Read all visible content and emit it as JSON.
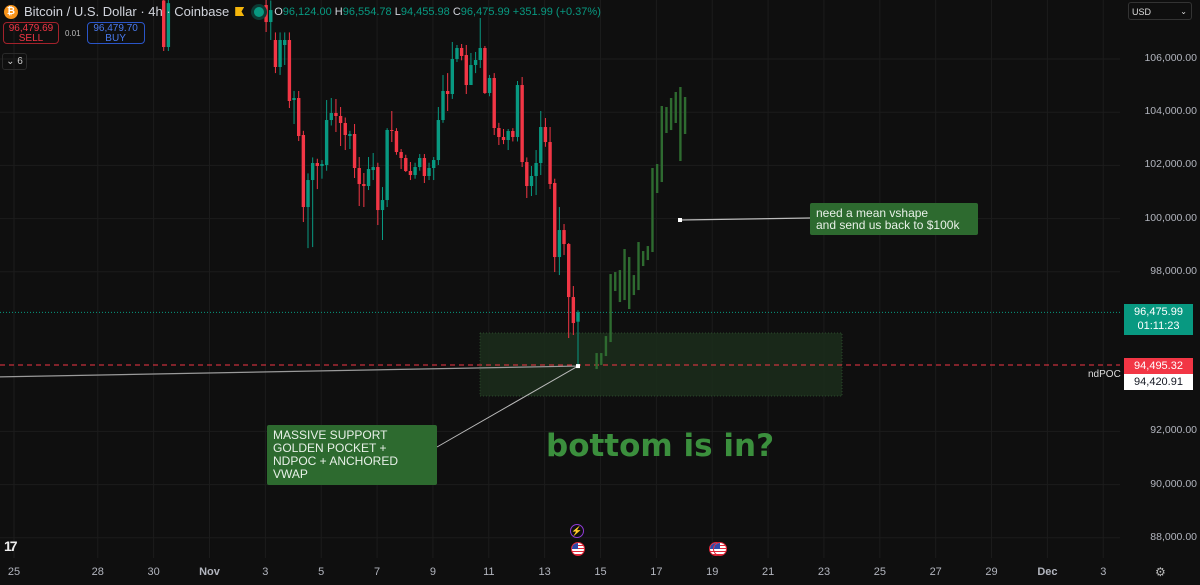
{
  "header": {
    "symbol_icon": "bitcoin-icon",
    "title": "Bitcoin / U.S. Dollar · 4h · Coinbase",
    "ohlc": {
      "o_label": "O",
      "o": "96,124.00",
      "h_label": "H",
      "h": "96,554.78",
      "l_label": "L",
      "l": "94,455.98",
      "c_label": "C",
      "c": "96,475.99",
      "change": "+351.99 (+0.37%)"
    }
  },
  "trade": {
    "sell_price": "96,479.69",
    "sell_label": "SELL",
    "spread": "0.01",
    "buy_price": "96,479.70",
    "buy_label": "BUY"
  },
  "indicators_toggle": "6",
  "currency": "USD",
  "price_axis": {
    "ticks": [
      "106,000.00",
      "104,000.00",
      "102,000.00",
      "100,000.00",
      "98,000.00",
      "92,000.00",
      "90,000.00",
      "88,000.00"
    ],
    "current_price": "96,475.99",
    "countdown": "01:11:23",
    "ndpoc_label": "ndPOC",
    "ndpoc_price": "94,495.32",
    "ndpoc_second": "94,420.91"
  },
  "time_axis": {
    "ticks": [
      "25",
      "28",
      "30",
      "Nov",
      "3",
      "5",
      "7",
      "9",
      "11",
      "13",
      "15",
      "17",
      "19",
      "21",
      "23",
      "25",
      "27",
      "29",
      "Dec",
      "3"
    ]
  },
  "annotations": {
    "support_note": [
      "MASSIVE SUPPORT",
      "GOLDEN POCKET +",
      "NDPOC + ANCHORED VWAP"
    ],
    "vshape_note": [
      "need a mean vshape",
      "and send us back to $100k"
    ],
    "headline": "bottom is in?"
  },
  "colors": {
    "up": "#089981",
    "down": "#f23645",
    "projection": "#2e6b30",
    "zone": "#1b2e1b",
    "ndpoc_line": "#f23645",
    "background": "#0f0f0f"
  },
  "chart_data": {
    "type": "candlestick",
    "symbol": "Bitcoin / U.S. Dollar",
    "interval": "4h",
    "ylim": [
      87000,
      108000
    ],
    "grid": true,
    "candles_ohlc": [
      [
        108200,
        108600,
        106300,
        106450
      ],
      [
        106450,
        108600,
        106300,
        108100
      ],
      null,
      null,
      null,
      null,
      null,
      null,
      null,
      null,
      null,
      null,
      null,
      null,
      null,
      null,
      null,
      null,
      null,
      null,
      null,
      null,
      [
        108030,
        108400,
        107015,
        107390
      ],
      [
        107390,
        108200,
        106714,
        107840
      ],
      [
        106714,
        107000,
        105470,
        105699
      ],
      [
        105699,
        107000,
        105400,
        106714
      ],
      [
        106526,
        107000,
        105774,
        106714
      ],
      [
        106714,
        107000,
        104157,
        104421
      ],
      [
        104458,
        104800,
        103556,
        104534
      ],
      [
        104534,
        104797,
        102916,
        103105
      ],
      [
        103143,
        103300,
        99871,
        100435
      ],
      [
        100435,
        101700,
        98890,
        101450
      ],
      [
        101450,
        102300,
        98930,
        102090
      ],
      [
        102090,
        102250,
        101110,
        101977
      ],
      [
        101977,
        102200,
        101500,
        102052
      ],
      [
        102014,
        104458,
        101800,
        103706
      ],
      [
        103706,
        104534,
        103500,
        103970
      ],
      [
        103970,
        104496,
        103256,
        103857
      ],
      [
        103857,
        104195,
        102729,
        103594
      ],
      [
        103594,
        103800,
        102578,
        103143
      ],
      [
        103105,
        103300,
        102616,
        103181
      ],
      [
        103181,
        103556,
        101526,
        101902
      ],
      [
        101902,
        102315,
        100473,
        101300
      ],
      [
        101300,
        101714,
        100435,
        101225
      ],
      [
        101225,
        102315,
        101074,
        101864
      ],
      [
        101826,
        102466,
        101450,
        101939
      ],
      [
        101939,
        102100,
        99758,
        100322
      ],
      [
        100322,
        101187,
        99195,
        100698
      ],
      [
        100698,
        103400,
        100435,
        103331
      ],
      [
        103331,
        104045,
        102879,
        103293
      ],
      [
        103293,
        103400,
        102400,
        102503
      ],
      [
        102503,
        102616,
        101864,
        102278
      ],
      [
        102278,
        102400,
        101751,
        101789
      ],
      [
        101789,
        102127,
        101450,
        101638
      ],
      [
        101638,
        102100,
        101500,
        101939
      ],
      [
        101939,
        102428,
        101800,
        102278
      ],
      [
        102278,
        102428,
        101338,
        101601
      ],
      [
        101601,
        102100,
        101450,
        101902
      ],
      [
        101902,
        102315,
        101450,
        102202
      ],
      [
        102202,
        104195,
        102014,
        103706
      ],
      [
        103706,
        105398,
        103600,
        104797
      ],
      [
        104797,
        105470,
        104045,
        104684
      ],
      [
        104684,
        106640,
        104500,
        106000
      ],
      [
        106000,
        106526,
        105887,
        106414
      ],
      [
        106414,
        106564,
        105950,
        106113
      ],
      [
        106150,
        106526,
        104684,
        105022
      ],
      [
        105022,
        106226,
        105210,
        105774
      ],
      [
        105774,
        106264,
        105470,
        105962
      ],
      [
        105962,
        107542,
        105662,
        106414
      ],
      [
        106414,
        106489,
        104684,
        104722
      ],
      [
        104722,
        105400,
        104600,
        105286
      ],
      [
        105286,
        105470,
        103143,
        103406
      ],
      [
        103406,
        103600,
        102766,
        103068
      ],
      [
        103068,
        103369,
        102800,
        102954
      ],
      [
        102954,
        103369,
        102578,
        103293
      ],
      [
        103293,
        103400,
        102900,
        103068
      ],
      [
        103068,
        105173,
        102900,
        105022
      ],
      [
        105022,
        105323,
        101939,
        102127
      ],
      [
        102127,
        102300,
        100774,
        101225
      ],
      [
        101225,
        101977,
        100849,
        101601
      ],
      [
        101601,
        102578,
        100887,
        102090
      ],
      [
        102090,
        104045,
        101638,
        103443
      ],
      [
        103443,
        103782,
        102700,
        102879
      ],
      [
        102879,
        103443,
        101110,
        101300
      ],
      [
        101338,
        101500,
        97991,
        98555
      ],
      [
        98555,
        100435,
        97878,
        99570
      ],
      [
        99570,
        99796,
        98630,
        99044
      ],
      [
        99044,
        99082,
        95510,
        97051
      ],
      [
        97051,
        97465,
        95624,
        96074
      ],
      [
        96124,
        96554.78,
        94455.98,
        96475.99
      ]
    ],
    "projection_bars_high_low": [
      [
        94946,
        94344
      ],
      [
        94946,
        94494
      ],
      [
        95585,
        94833
      ],
      [
        97916,
        95359
      ],
      [
        97991,
        97277
      ],
      [
        98066,
        96863
      ],
      [
        98856,
        96938
      ],
      [
        98555,
        96600
      ],
      [
        97878,
        97126
      ],
      [
        99119,
        97314
      ],
      [
        98781,
        98217
      ],
      [
        98969,
        98442
      ],
      [
        101902,
        98743
      ],
      [
        102052,
        100962
      ],
      [
        104233,
        101375
      ],
      [
        104195,
        103218
      ],
      [
        104534,
        103330
      ],
      [
        104759,
        103594
      ],
      [
        104947,
        102165
      ],
      [
        104571,
        103180
      ]
    ],
    "support_zone_price": [
      95698,
      93329
    ],
    "ndpoc_price": 94495.32,
    "current_price": 96475.99,
    "vwap_line_price": [
      94050,
      94456
    ],
    "vshape_note_anchor_price": 99947
  }
}
